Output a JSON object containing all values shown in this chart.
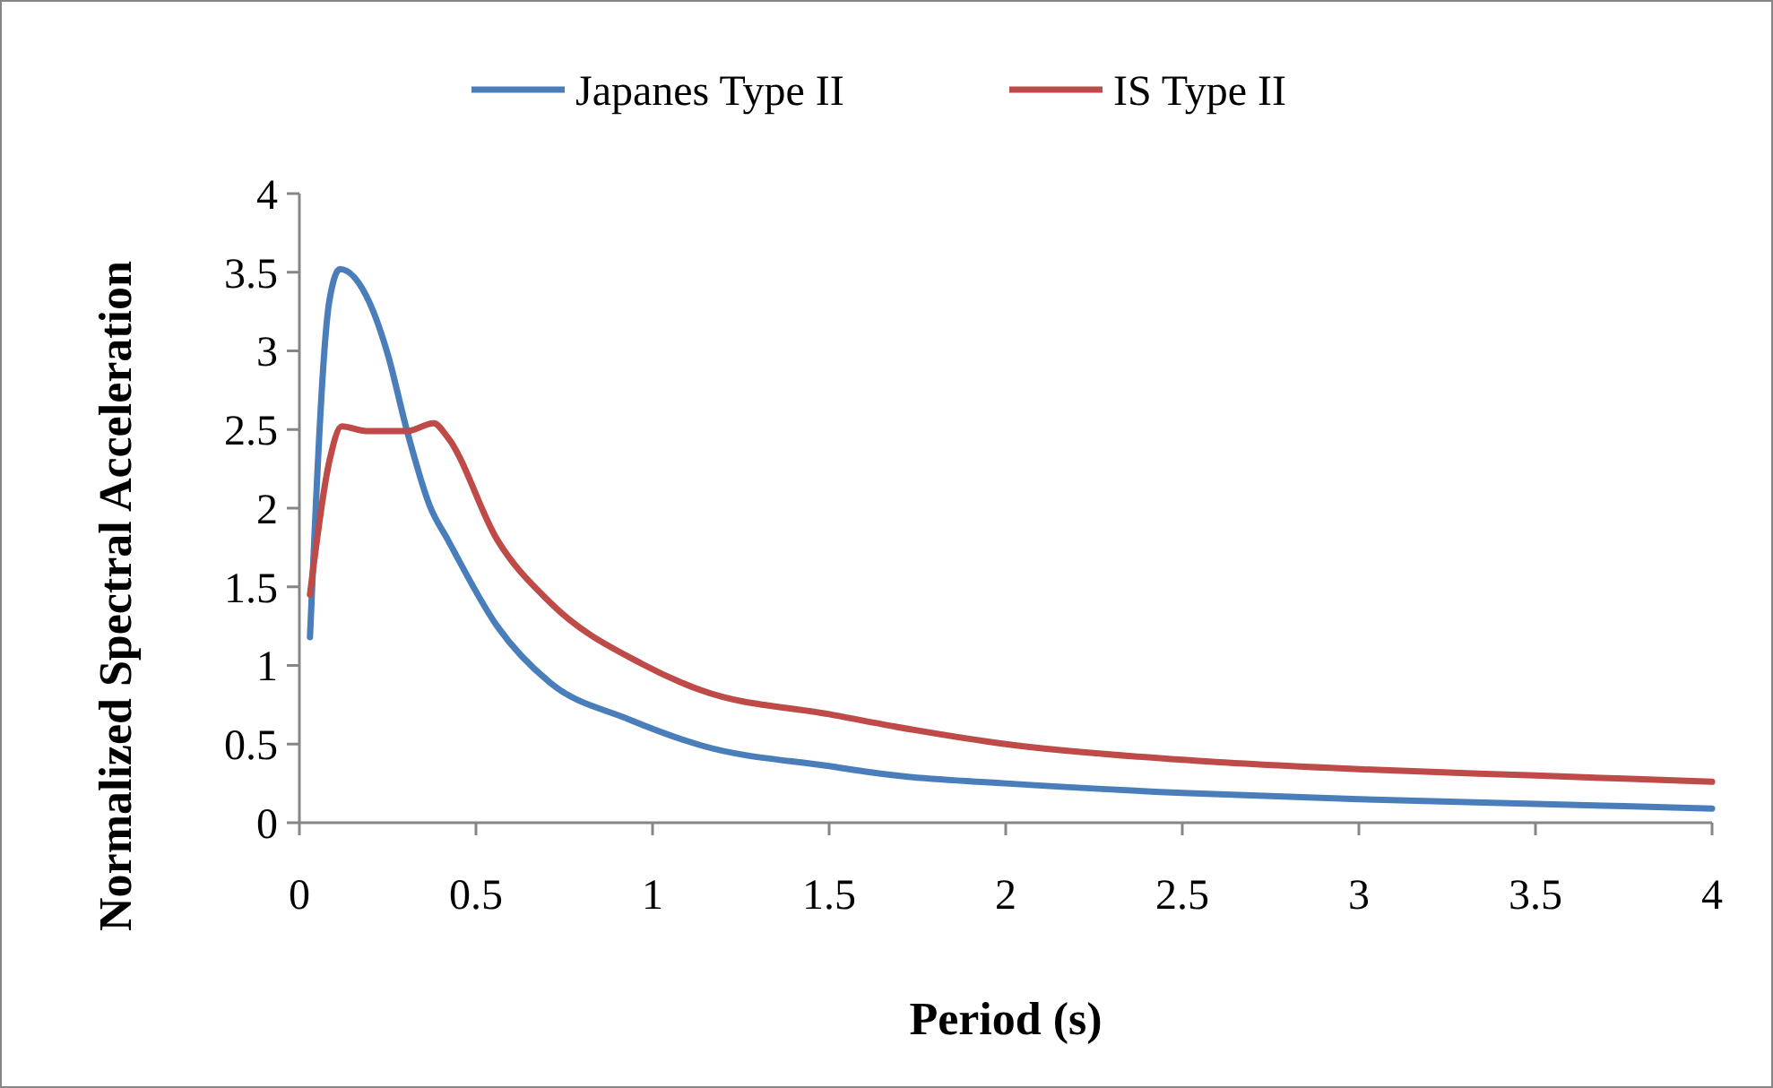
{
  "chart_data": {
    "type": "line",
    "xlabel": "Period (s)",
    "ylabel": "Normalized Spectral Acceleration",
    "xlim": [
      0,
      4
    ],
    "ylim": [
      0,
      4
    ],
    "xticks": [
      0,
      0.5,
      1,
      1.5,
      2,
      2.5,
      3,
      3.5,
      4
    ],
    "yticks": [
      0,
      0.5,
      1,
      1.5,
      2,
      2.5,
      3,
      3.5,
      4
    ],
    "grid": false,
    "legend": "top",
    "marker": "none",
    "line_style": "solid",
    "series": [
      {
        "name": "Japanes Type II",
        "color": "#4a7ebb",
        "x": [
          0.03,
          0.085,
          0.115,
          0.2,
          0.25,
          0.305,
          0.37,
          0.42,
          0.56,
          0.71,
          0.93,
          1.14,
          1.5,
          1.69,
          2,
          2.5,
          3,
          3.5,
          4
        ],
        "values": [
          1.18,
          3.32,
          3.52,
          3.3,
          2.98,
          2.49,
          2.01,
          1.8,
          1.25,
          0.89,
          0.66,
          0.49,
          0.36,
          0.3,
          0.25,
          0.19,
          0.15,
          0.12,
          0.09
        ]
      },
      {
        "name": "IS Type II",
        "color": "#be4b48",
        "x": [
          0.03,
          0.085,
          0.12,
          0.19,
          0.305,
          0.38,
          0.42,
          0.56,
          0.71,
          0.97,
          1.14,
          1.5,
          1.69,
          2,
          2.5,
          3,
          3.5,
          4
        ],
        "values": [
          1.45,
          2.3,
          2.52,
          2.49,
          2.49,
          2.54,
          2.45,
          1.8,
          1.4,
          1.01,
          0.84,
          0.69,
          0.61,
          0.5,
          0.4,
          0.34,
          0.3,
          0.26
        ]
      }
    ]
  }
}
